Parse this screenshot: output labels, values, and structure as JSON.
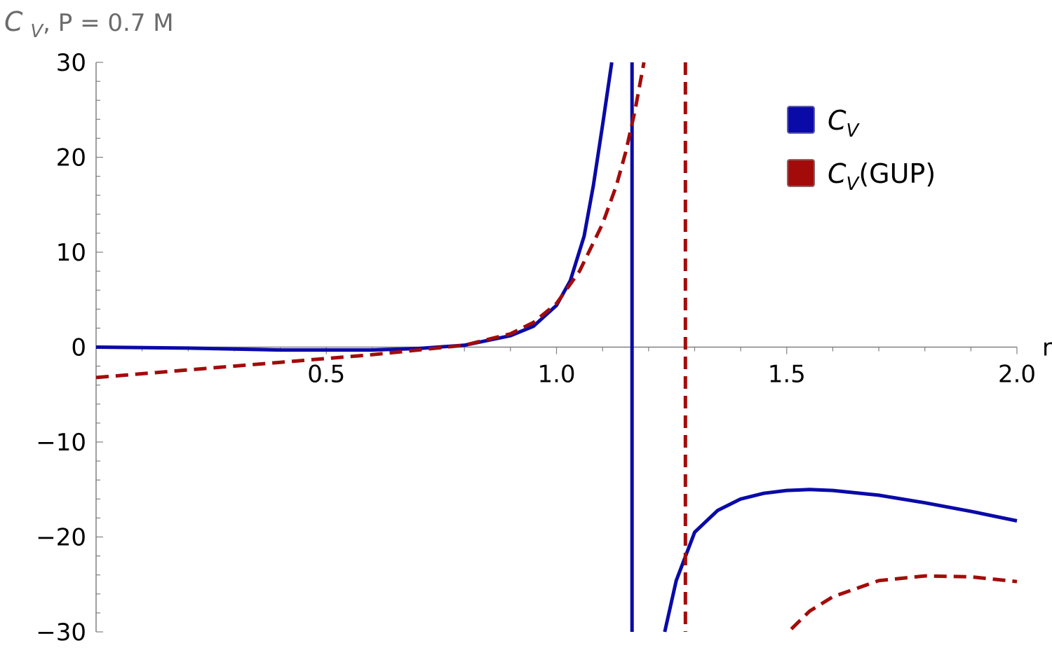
{
  "chart_data": {
    "type": "line",
    "title": "",
    "y_axis_title": "C_V, P = 0.7 M",
    "xlabel": "r",
    "xlim": [
      0.0,
      2.0
    ],
    "ylim": [
      -30,
      30
    ],
    "x_ticks": [
      0.5,
      1.0,
      1.5,
      2.0
    ],
    "x_tick_labels": [
      "0.5",
      "1.0",
      "1.5",
      "2.0"
    ],
    "y_ticks": [
      -30,
      -20,
      -10,
      0,
      10,
      20,
      30
    ],
    "y_tick_labels": [
      "−30",
      "−20",
      "−10",
      "0",
      "10",
      "20",
      "30"
    ],
    "grid": false,
    "legend_position": "top-right",
    "series": [
      {
        "name": "C_V",
        "color": "#0a0aa8",
        "style": "solid",
        "segments": [
          {
            "x": [
              0.0,
              0.2,
              0.4,
              0.6,
              0.7,
              0.8,
              0.9,
              0.95,
              1.0,
              1.03,
              1.06,
              1.08,
              1.1,
              1.12
            ],
            "y": [
              0.0,
              -0.1,
              -0.3,
              -0.3,
              -0.15,
              0.2,
              1.2,
              2.2,
              4.4,
              7.0,
              11.7,
              17.0,
              23.4,
              30.0
            ]
          },
          {
            "x": [
              1.164,
              1.164
            ],
            "y": [
              30.0,
              -30.0
            ]
          },
          {
            "x": [
              1.235,
              1.26,
              1.3,
              1.35,
              1.4,
              1.45,
              1.5,
              1.55,
              1.6,
              1.7,
              1.8,
              1.9,
              2.0
            ],
            "y": [
              -30.0,
              -24.6,
              -19.5,
              -17.2,
              -16.0,
              -15.4,
              -15.1,
              -15.0,
              -15.1,
              -15.6,
              -16.4,
              -17.3,
              -18.3
            ]
          }
        ]
      },
      {
        "name": "C_V(GUP)",
        "color": "#a30b0b",
        "style": "dashed",
        "segments": [
          {
            "x": [
              0.0,
              0.2,
              0.4,
              0.6,
              0.7,
              0.8,
              0.9,
              0.95,
              1.0,
              1.05,
              1.1,
              1.13,
              1.15,
              1.17,
              1.19
            ],
            "y": [
              -3.2,
              -2.4,
              -1.6,
              -0.8,
              -0.3,
              0.2,
              1.4,
              2.6,
              4.6,
              8.0,
              13.0,
              17.0,
              20.5,
              24.8,
              30.0
            ]
          },
          {
            "x": [
              1.28,
              1.28
            ],
            "y": [
              30.0,
              -30.0
            ]
          },
          {
            "x": [
              1.51,
              1.55,
              1.6,
              1.7,
              1.8,
              1.9,
              2.0
            ],
            "y": [
              -29.7,
              -27.8,
              -26.3,
              -24.6,
              -24.1,
              -24.2,
              -24.7
            ]
          }
        ]
      }
    ]
  },
  "legend": {
    "items": [
      {
        "symbol": "C",
        "sub": "V",
        "suffix": "",
        "color": "#0a0aa8",
        "edge": "#5a5aa8"
      },
      {
        "symbol": "C",
        "sub": "V",
        "suffix": "(GUP)",
        "color": "#a30b0b",
        "edge": "#8a6060"
      }
    ]
  }
}
